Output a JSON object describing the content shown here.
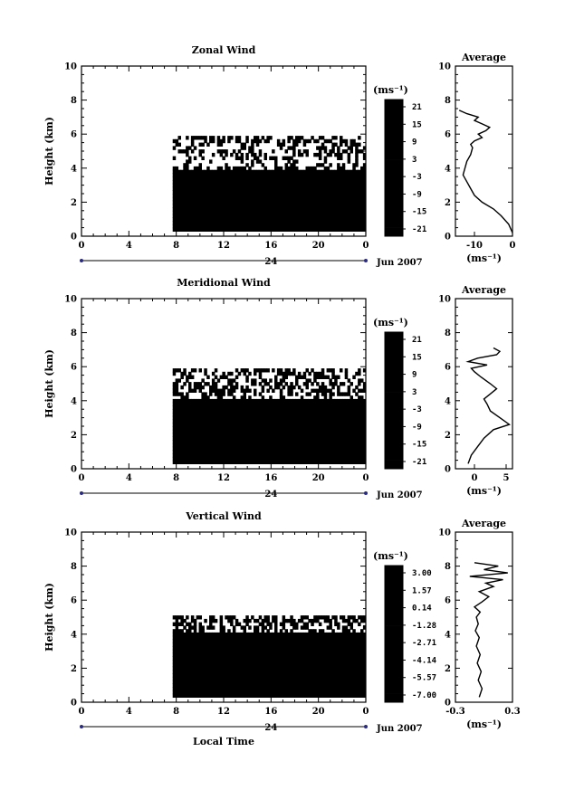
{
  "labels": {
    "ylabel": "Height (km)",
    "xlabel": "Local Time",
    "date": "Jun 2007",
    "day": "24",
    "avg_title": "Average",
    "unit": "(ms⁻¹)"
  },
  "x_ticks": [
    "0",
    "4",
    "8",
    "12",
    "16",
    "20",
    "0"
  ],
  "y_ticks": [
    "0",
    "2",
    "4",
    "6",
    "8",
    "10"
  ],
  "chart_data": [
    {
      "type": "heatmap",
      "title": "Zonal Wind",
      "xlabel": "",
      "ylabel": "Height (km)",
      "xlim": [
        0,
        24
      ],
      "ylim": [
        0,
        10
      ],
      "x_ticks": [
        "0",
        "4",
        "8",
        "12",
        "16",
        "20",
        "0"
      ],
      "y_ticks": [
        "0",
        "2",
        "4",
        "6",
        "8",
        "10"
      ],
      "colorbar": {
        "unit": "(ms⁻¹)",
        "ticks": [
          "21",
          "15",
          "9",
          "3",
          "-3",
          "-9",
          "-15",
          "-21"
        ],
        "range": [
          -24,
          24
        ]
      },
      "profile": {
        "title": "Average",
        "xlabel": "(ms⁻¹)",
        "x_ticks": [
          "-10",
          "0"
        ],
        "xlim": [
          -15,
          0
        ],
        "x": [
          0,
          -1,
          -3,
          -5,
          -8,
          -10,
          -11,
          -12,
          -13,
          -12.5,
          -12,
          -11,
          -10.5,
          -11,
          -10,
          -8,
          -9,
          -7,
          -6,
          -8,
          -10,
          -9,
          -12,
          -14
        ],
        "y": [
          0.2,
          0.7,
          1.2,
          1.6,
          2,
          2.4,
          2.8,
          3.2,
          3.6,
          4,
          4.4,
          4.8,
          5.2,
          5.4,
          5.6,
          5.8,
          6,
          6.2,
          6.4,
          6.6,
          6.8,
          7,
          7.2,
          7.4
        ]
      }
    },
    {
      "type": "heatmap",
      "title": "Meridional Wind",
      "xlabel": "",
      "ylabel": "Height (km)",
      "xlim": [
        0,
        24
      ],
      "ylim": [
        0,
        10
      ],
      "x_ticks": [
        "0",
        "4",
        "8",
        "12",
        "16",
        "20",
        "0"
      ],
      "y_ticks": [
        "0",
        "2",
        "4",
        "6",
        "8",
        "10"
      ],
      "colorbar": {
        "unit": "(ms⁻¹)",
        "ticks": [
          "21",
          "15",
          "9",
          "3",
          "-3",
          "-9",
          "-15",
          "-21"
        ],
        "range": [
          -24,
          24
        ]
      },
      "profile": {
        "title": "Average",
        "xlabel": "(ms⁻¹)",
        "x_ticks": [
          "0",
          "5"
        ],
        "xlim": [
          -3,
          6
        ],
        "x": [
          -1,
          -0.5,
          0.5,
          1.5,
          3,
          5.5,
          4,
          2.5,
          2,
          1.5,
          2.5,
          3.5,
          2.5,
          1,
          0,
          -0.5,
          2,
          -1,
          0.5,
          3.5,
          4,
          3
        ],
        "y": [
          0.3,
          0.8,
          1.3,
          1.8,
          2.3,
          2.6,
          3,
          3.4,
          3.8,
          4.1,
          4.4,
          4.7,
          5,
          5.4,
          5.7,
          5.9,
          6.1,
          6.3,
          6.5,
          6.7,
          6.9,
          7.1
        ]
      }
    },
    {
      "type": "heatmap",
      "title": "Vertical Wind",
      "xlabel": "Local Time",
      "ylabel": "Height (km)",
      "xlim": [
        0,
        24
      ],
      "ylim": [
        0,
        10
      ],
      "x_ticks": [
        "0",
        "4",
        "8",
        "12",
        "16",
        "20",
        "0"
      ],
      "y_ticks": [
        "0",
        "2",
        "4",
        "6",
        "8",
        "10"
      ],
      "colorbar": {
        "unit": "(ms⁻¹)",
        "ticks": [
          "3.00",
          "1.57",
          "0.14",
          "-1.28",
          "-2.71",
          "-4.14",
          "-5.57",
          "-7.00"
        ],
        "range": [
          -7.7,
          3.7
        ]
      },
      "profile": {
        "title": "Average",
        "xlabel": "(ms⁻¹)",
        "x_ticks": [
          "-0.3",
          "0.3"
        ],
        "xlim": [
          -0.3,
          0.3
        ],
        "x": [
          -0.05,
          -0.02,
          -0.06,
          -0.03,
          -0.07,
          -0.04,
          -0.08,
          -0.05,
          -0.09,
          -0.06,
          -0.08,
          -0.04,
          -0.1,
          -0.02,
          0.05,
          -0.05,
          0.1,
          0.02,
          0.2,
          -0.15,
          0.25,
          0.0,
          0.15,
          -0.1
        ],
        "y": [
          0.3,
          0.8,
          1.3,
          1.8,
          2.3,
          2.8,
          3.3,
          3.8,
          4.2,
          4.6,
          5,
          5.3,
          5.6,
          5.9,
          6.2,
          6.5,
          6.8,
          7,
          7.2,
          7.4,
          7.6,
          7.8,
          8,
          8.2
        ]
      }
    }
  ]
}
